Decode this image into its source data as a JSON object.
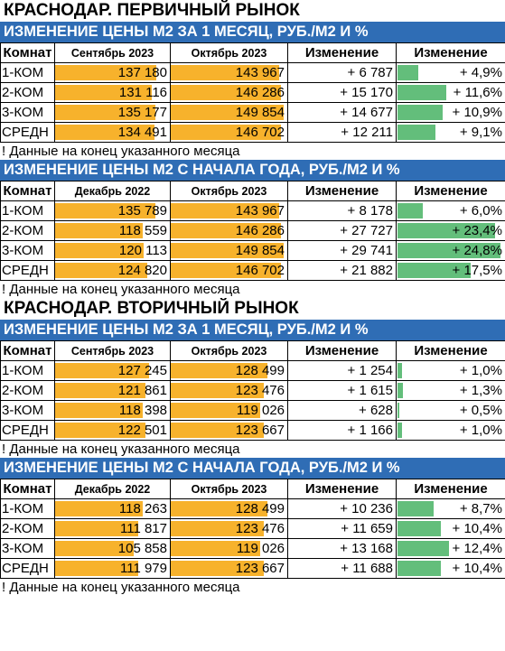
{
  "sections": [
    {
      "heading": "КРАСНОДАР. ПЕРВИЧНЫЙ РЫНОК",
      "tables": [
        {
          "title": "ИЗМЕНЕНИЕ ЦЕНЫ М2 ЗА 1 МЕСЯЦ, РУБ./М2 И %",
          "headers": [
            "Комнат",
            "Сентябрь 2023",
            "Октябрь 2023",
            "Изменение",
            "Изменение"
          ],
          "rows": [
            {
              "room": "1-КОМ",
              "v1": "137 180",
              "v2": "143 967",
              "chg": "+ 6 787",
              "pct": "+ 4,9%",
              "v1n": 137180,
              "v2n": 143967,
              "pctn": 4.9
            },
            {
              "room": "2-КОМ",
              "v1": "131 116",
              "v2": "146 286",
              "chg": "+ 15 170",
              "pct": "+ 11,6%",
              "v1n": 131116,
              "v2n": 146286,
              "pctn": 11.6
            },
            {
              "room": "3-КОМ",
              "v1": "135 177",
              "v2": "149 854",
              "chg": "+ 14 677",
              "pct": "+ 10,9%",
              "v1n": 135177,
              "v2n": 149854,
              "pctn": 10.9
            },
            {
              "room": "СРЕДН",
              "v1": "134 491",
              "v2": "146 702",
              "chg": "+ 12 211",
              "pct": "+ 9,1%",
              "v1n": 134491,
              "v2n": 146702,
              "pctn": 9.1
            }
          ],
          "note": "! Данные на конец указанного месяца"
        },
        {
          "title": "ИЗМЕНЕНИЕ ЦЕНЫ М2 С НАЧАЛА ГОДА, РУБ./М2 И %",
          "headers": [
            "Комнат",
            "Декабрь 2022",
            "Октябрь 2023",
            "Изменение",
            "Изменение"
          ],
          "rows": [
            {
              "room": "1-КОМ",
              "v1": "135 789",
              "v2": "143 967",
              "chg": "+ 8 178",
              "pct": "+ 6,0%",
              "v1n": 135789,
              "v2n": 143967,
              "pctn": 6.0
            },
            {
              "room": "2-КОМ",
              "v1": "118 559",
              "v2": "146 286",
              "chg": "+ 27 727",
              "pct": "+ 23,4%",
              "v1n": 118559,
              "v2n": 146286,
              "pctn": 23.4
            },
            {
              "room": "3-КОМ",
              "v1": "120 113",
              "v2": "149 854",
              "chg": "+ 29 741",
              "pct": "+ 24,8%",
              "v1n": 120113,
              "v2n": 149854,
              "pctn": 24.8
            },
            {
              "room": "СРЕДН",
              "v1": "124 820",
              "v2": "146 702",
              "chg": "+ 21 882",
              "pct": "+ 17,5%",
              "v1n": 124820,
              "v2n": 146702,
              "pctn": 17.5
            }
          ],
          "note": "! Данные на конец указанного месяца"
        }
      ]
    },
    {
      "heading": "КРАСНОДАР. ВТОРИЧНЫЙ РЫНОК",
      "tables": [
        {
          "title": "ИЗМЕНЕНИЕ ЦЕНЫ М2 ЗА 1 МЕСЯЦ, РУБ./М2 И %",
          "headers": [
            "Комнат",
            "Сентябрь 2023",
            "Октябрь 2023",
            "Изменение",
            "Изменение"
          ],
          "rows": [
            {
              "room": "1-КОМ",
              "v1": "127 245",
              "v2": "128 499",
              "chg": "+ 1 254",
              "pct": "+ 1,0%",
              "v1n": 127245,
              "v2n": 128499,
              "pctn": 1.0
            },
            {
              "room": "2-КОМ",
              "v1": "121 861",
              "v2": "123 476",
              "chg": "+ 1 615",
              "pct": "+ 1,3%",
              "v1n": 121861,
              "v2n": 123476,
              "pctn": 1.3
            },
            {
              "room": "3-КОМ",
              "v1": "118 398",
              "v2": "119 026",
              "chg": "+ 628",
              "pct": "+ 0,5%",
              "v1n": 118398,
              "v2n": 119026,
              "pctn": 0.5
            },
            {
              "room": "СРЕДН",
              "v1": "122 501",
              "v2": "123 667",
              "chg": "+ 1 166",
              "pct": "+ 1,0%",
              "v1n": 122501,
              "v2n": 123667,
              "pctn": 1.0
            }
          ],
          "note": "! Данные на конец указанного месяца"
        },
        {
          "title": "ИЗМЕНЕНИЕ ЦЕНЫ М2 С НАЧАЛА ГОДА, РУБ./М2 И %",
          "headers": [
            "Комнат",
            "Декабрь 2022",
            "Октябрь 2023",
            "Изменение",
            "Изменение"
          ],
          "rows": [
            {
              "room": "1-КОМ",
              "v1": "118 263",
              "v2": "128 499",
              "chg": "+ 10 236",
              "pct": "+ 8,7%",
              "v1n": 118263,
              "v2n": 128499,
              "pctn": 8.7
            },
            {
              "room": "2-КОМ",
              "v1": "111 817",
              "v2": "123 476",
              "chg": "+ 11 659",
              "pct": "+ 10,4%",
              "v1n": 111817,
              "v2n": 123476,
              "pctn": 10.4
            },
            {
              "room": "3-КОМ",
              "v1": "105 858",
              "v2": "119 026",
              "chg": "+ 13 168",
              "pct": "+ 12,4%",
              "v1n": 105858,
              "v2n": 119026,
              "pctn": 12.4
            },
            {
              "room": "СРЕДН",
              "v1": "111 979",
              "v2": "123 667",
              "chg": "+ 11 688",
              "pct": "+ 10,4%",
              "v1n": 111979,
              "v2n": 123667,
              "pctn": 10.4
            }
          ],
          "note": "! Данные на конец указанного месяца"
        }
      ]
    }
  ],
  "colors": {
    "title_bg": "#2f6db5",
    "price_fill": "#f7b22c",
    "pct_fill": "#63be7b"
  }
}
